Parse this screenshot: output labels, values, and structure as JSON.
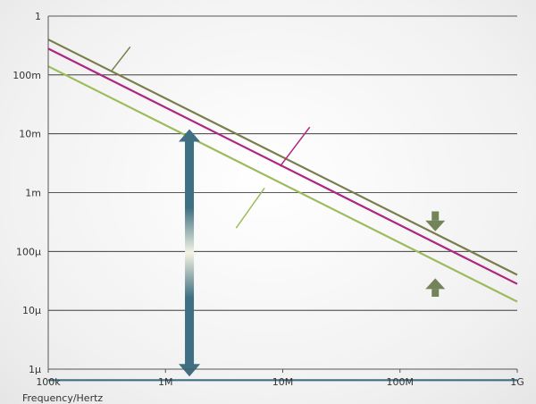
{
  "chart_data": {
    "type": "line",
    "title": "",
    "xlabel": "Frequency/Hertz",
    "ylabel": "",
    "x_scale": "log",
    "y_scale": "log",
    "xlim": [
      100000,
      1000000000
    ],
    "ylim": [
      1e-06,
      1
    ],
    "x_ticks": [
      100000,
      1000000,
      10000000,
      100000000,
      1000000000
    ],
    "x_tick_labels": [
      "100k",
      "1M",
      "10M",
      "100M",
      "1G"
    ],
    "y_ticks": [
      1,
      0.1,
      0.01,
      0.001,
      0.0001,
      1e-05,
      1e-06
    ],
    "y_tick_labels": [
      "1",
      "100m",
      "10m",
      "1m",
      "100μ",
      "10μ",
      "1μ"
    ],
    "grid": true,
    "series": [
      {
        "values": [
          [
            100000,
            0.4
          ],
          [
            1000000000,
            4e-05
          ]
        ],
        "color": "#7a7d4a"
      },
      {
        "values": [
          [
            100000,
            0.28
          ],
          [
            1000000000,
            2.8e-05
          ]
        ],
        "color": "#b0267d"
      },
      {
        "values": [
          [
            100000,
            0.14
          ],
          [
            1000000000,
            1.4e-05
          ]
        ],
        "color": "#9cbc5c"
      },
      {
        "values": [
          [
            100000,
            6.5e-07
          ],
          [
            1000000000,
            6.5e-07
          ]
        ],
        "color": "#3f6f82"
      }
    ],
    "annotations": {
      "callouts": [
        {
          "color": "#7a7d4a",
          "from": [
            350000,
            0.12
          ],
          "to": [
            500000,
            0.3
          ]
        },
        {
          "color": "#b0267d",
          "from": [
            9500000,
            0.0028
          ],
          "to": [
            17000000,
            0.013
          ]
        },
        {
          "color": "#9cbc5c",
          "from": [
            4000000,
            0.00025
          ],
          "to": [
            7000000,
            0.0012
          ]
        }
      ],
      "range_arrow": {
        "x": 1600000,
        "y_top": 0.012,
        "y_bottom": 7.5e-07,
        "color": "#3f6f82"
      },
      "gap_arrows": [
        {
          "x": 200000000,
          "y_from": 0.00048,
          "y_to": 0.00022,
          "color": "#74845a"
        },
        {
          "x": 200000000,
          "y_from": 1.7e-05,
          "y_to": 3.5e-05,
          "color": "#74845a"
        }
      ]
    }
  }
}
